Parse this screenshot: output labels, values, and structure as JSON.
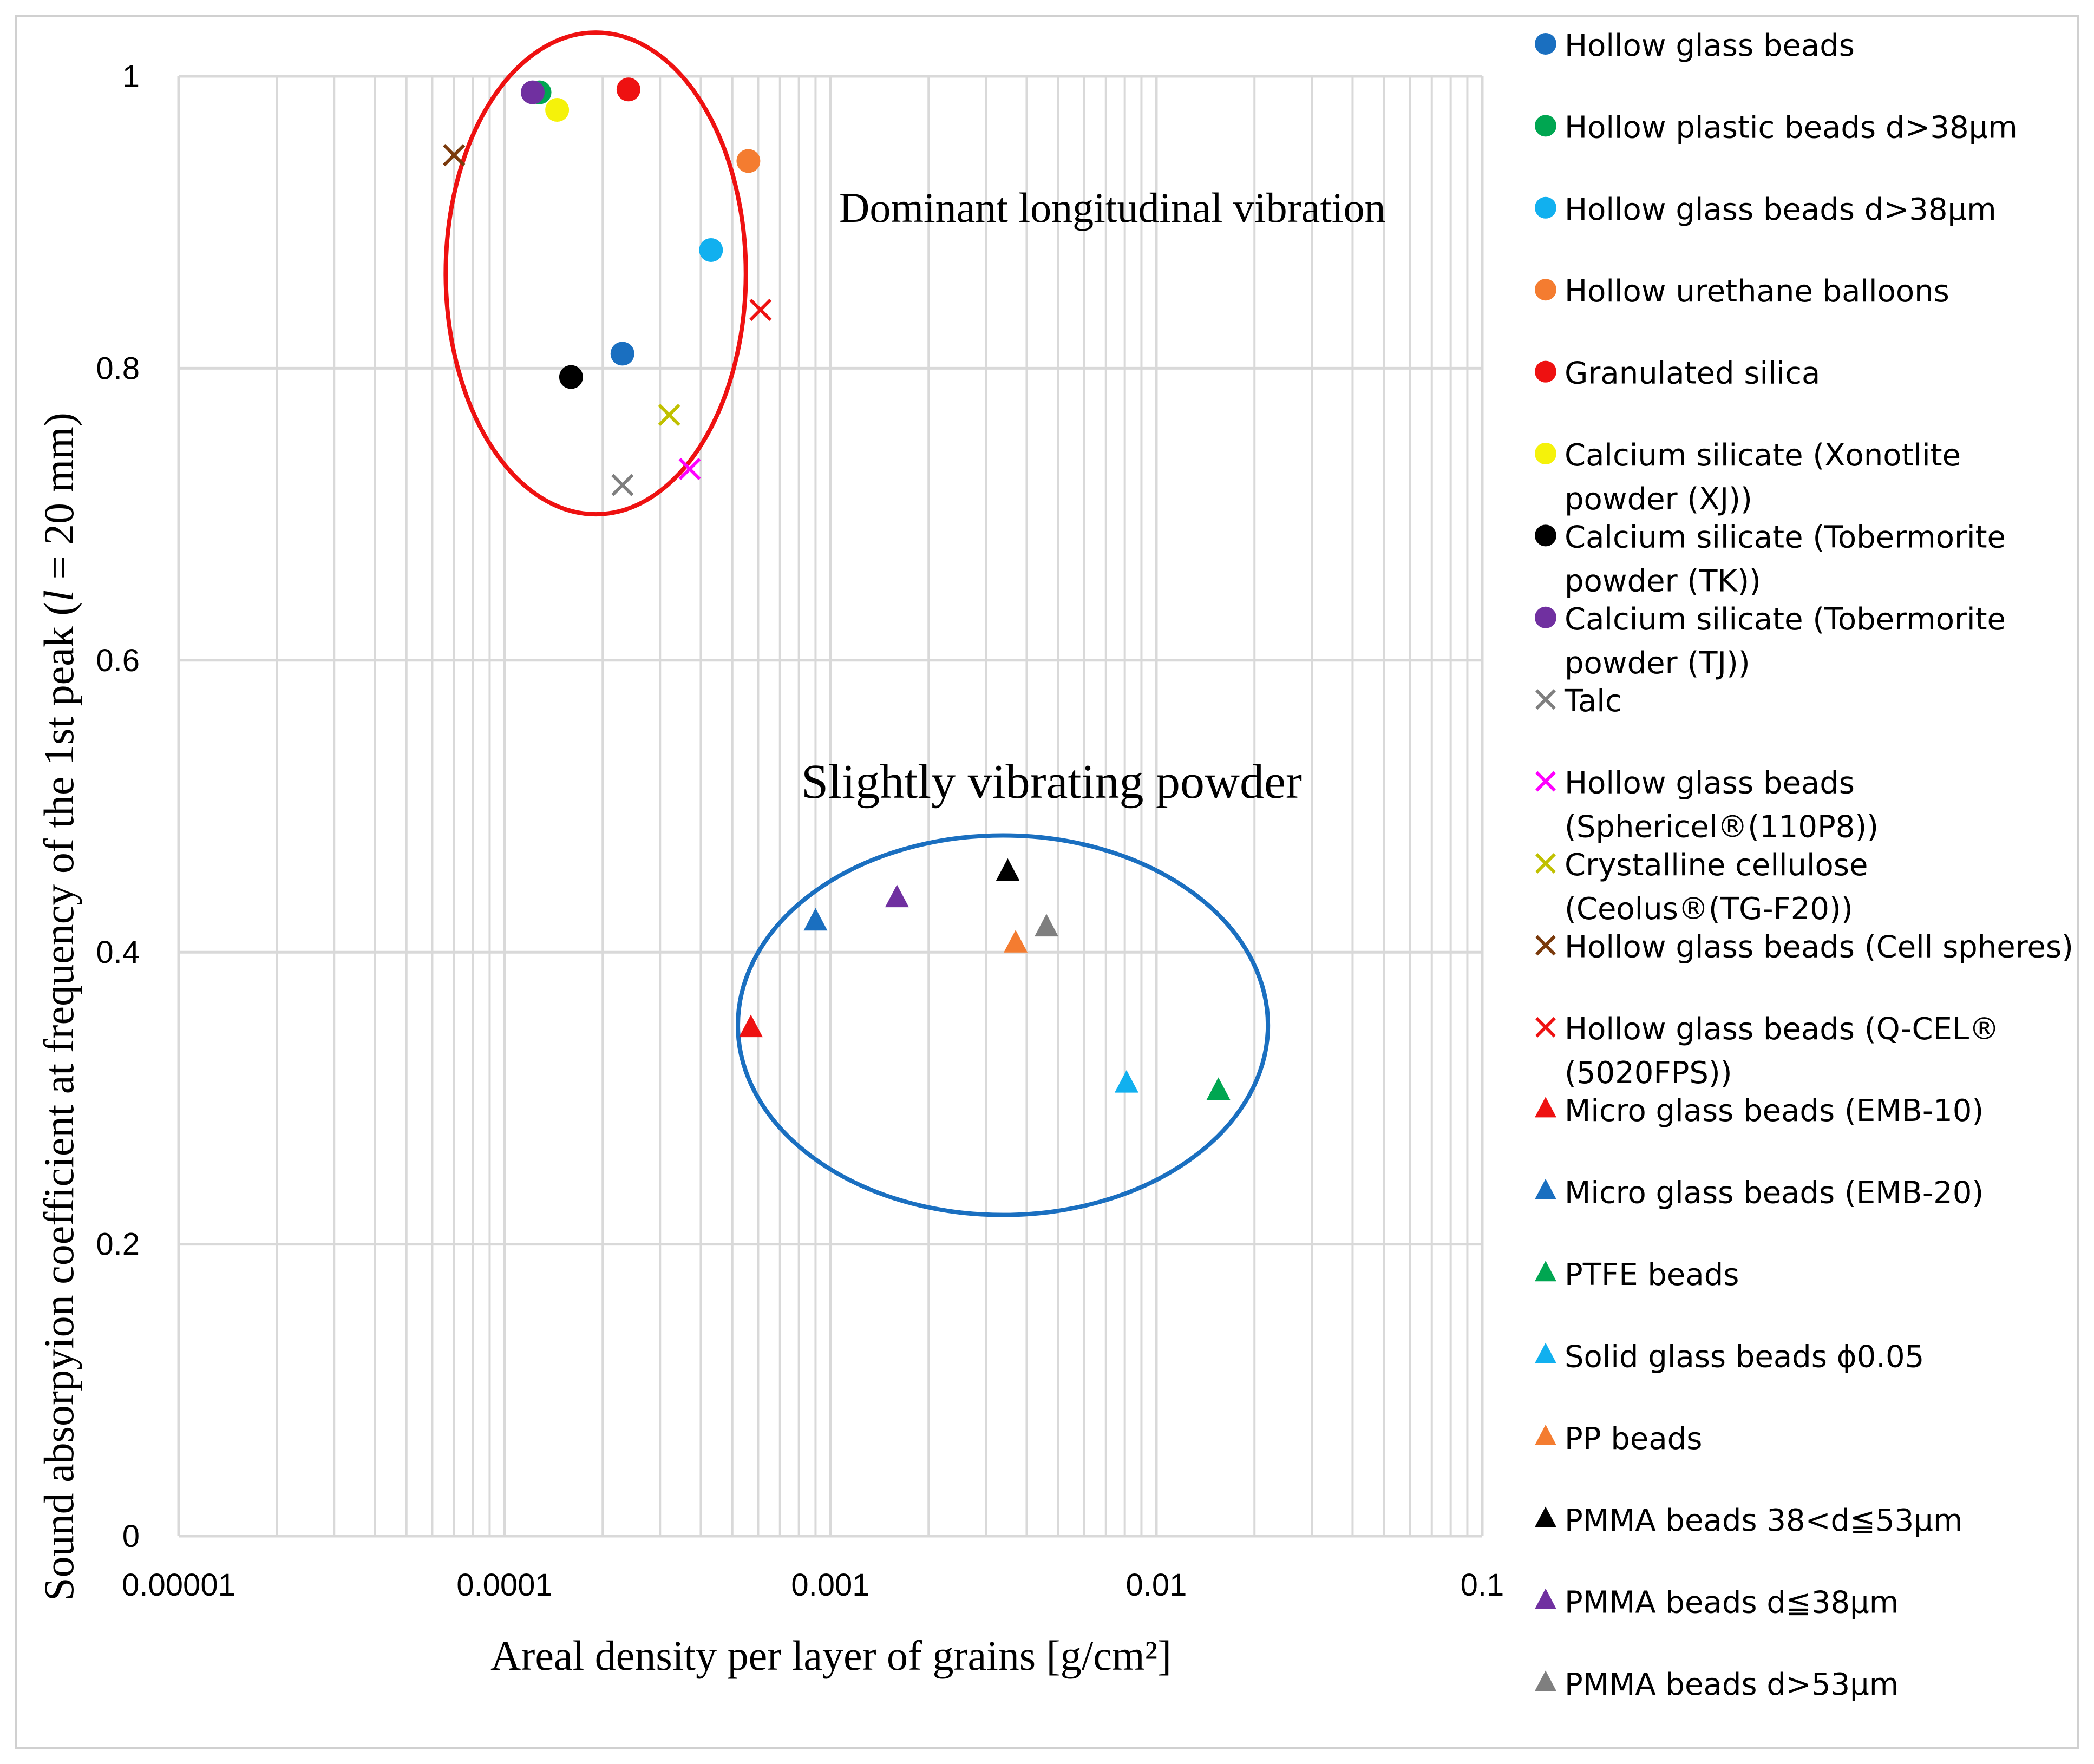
{
  "chart_data": {
    "type": "scatter",
    "title": "",
    "xlabel": "Areal density per layer of  grains [g/cm²]",
    "ylabel_parts": [
      "Sound absorpyion coefficient at frequency of the 1st peak (",
      "l",
      " = 20 mm)"
    ],
    "xscale": "log",
    "xlim": [
      1e-05,
      0.1
    ],
    "ylim": [
      0,
      1
    ],
    "grid": true,
    "x_ticks": [
      "0.00001",
      "0.0001",
      "0.001",
      "0.01",
      "0.1"
    ],
    "y_ticks": [
      "0",
      "0.2",
      "0.4",
      "0.6",
      "0.8",
      "1"
    ],
    "legend_position": "right",
    "annotations": [
      {
        "text": "Dominant longitudinal vibration",
        "shape": "ellipse",
        "color": "#ee1111",
        "center": [
          0.00019,
          0.86
        ],
        "x_range": [
          6.6e-05,
          0.00055
        ],
        "y_range": [
          0.7,
          1.03
        ]
      },
      {
        "text": "Slightly vibrating powder",
        "shape": "ellipse",
        "color": "#1a6fc0",
        "center": [
          0.0032,
          0.35
        ],
        "x_range": [
          0.00052,
          0.022
        ],
        "y_range": [
          0.22,
          0.48
        ]
      }
    ],
    "series": [
      {
        "name": "Hollow glass beads",
        "marker": "circle",
        "color": "#1a6fc0",
        "x": 0.00023,
        "y": 0.81
      },
      {
        "name": "Hollow plastic beads d>38μm",
        "marker": "circle",
        "color": "#00a651",
        "x": 0.000128,
        "y": 0.989
      },
      {
        "name": "Hollow glass beads d>38μm",
        "marker": "circle",
        "color": "#11b0ef",
        "x": 0.00043,
        "y": 0.881
      },
      {
        "name": "Hollow urethane balloons",
        "marker": "circle",
        "color": "#f47c30",
        "x": 0.00056,
        "y": 0.942
      },
      {
        "name": "Granulated silica",
        "marker": "circle",
        "color": "#ee1111",
        "x": 0.00024,
        "y": 0.991
      },
      {
        "name": "Calcium silicate (Xonotlite powder (XJ))",
        "marker": "circle",
        "color": "#f5f20a",
        "x": 0.000145,
        "y": 0.977
      },
      {
        "name": "Calcium silicate (Tobermorite powder (TK))",
        "marker": "circle",
        "color": "#000000",
        "x": 0.00016,
        "y": 0.794
      },
      {
        "name": "Calcium silicate (Tobermorite powder (TJ))",
        "marker": "circle",
        "color": "#7030a0",
        "x": 0.000122,
        "y": 0.989
      },
      {
        "name": "Talc",
        "marker": "x",
        "color": "#7f7f7f",
        "x": 0.00023,
        "y": 0.72
      },
      {
        "name": "Hollow glass beads (Sphericel®(110P8))",
        "marker": "x",
        "color": "#ff00ff",
        "x": 0.00037,
        "y": 0.731
      },
      {
        "name": "Crystalline cellulose (Ceolus®(TG-F20))",
        "marker": "x",
        "color": "#c0c000",
        "x": 0.00032,
        "y": 0.768
      },
      {
        "name": "Hollow glass beads (Cell spheres)",
        "marker": "x",
        "color": "#7a3a0c",
        "x": 7e-05,
        "y": 0.946
      },
      {
        "name": "Hollow glass beads (Q-CEL®(5020FPS))",
        "marker": "x",
        "color": "#ee1111",
        "x": 0.00061,
        "y": 0.84
      },
      {
        "name": "Micro glass beads (EMB-10)",
        "marker": "triangle",
        "color": "#ee1111",
        "x": 0.00057,
        "y": 0.348
      },
      {
        "name": "Micro glass beads (EMB-20)",
        "marker": "triangle",
        "color": "#1a6fc0",
        "x": 0.0009,
        "y": 0.421
      },
      {
        "name": "PTFE beads",
        "marker": "triangle",
        "color": "#00a651",
        "x": 0.0155,
        "y": 0.305
      },
      {
        "name": "Solid glass beads ϕ0.05",
        "marker": "triangle",
        "color": "#11b0ef",
        "x": 0.0081,
        "y": 0.31
      },
      {
        "name": "PP beads",
        "marker": "triangle",
        "color": "#f47c30",
        "x": 0.0037,
        "y": 0.406
      },
      {
        "name": "PMMA beads 38<d≦53μm",
        "marker": "triangle",
        "color": "#000000",
        "x": 0.0035,
        "y": 0.455
      },
      {
        "name": "PMMA beads d≦38μm",
        "marker": "triangle",
        "color": "#7030a0",
        "x": 0.0016,
        "y": 0.437
      },
      {
        "name": "PMMA beads d>53μm",
        "marker": "triangle",
        "color": "#7f7f7f",
        "x": 0.0046,
        "y": 0.417
      }
    ],
    "legend_labels": [
      [
        "Hollow glass beads"
      ],
      [
        "Hollow plastic beads d>38μm"
      ],
      [
        "Hollow glass beads d>38μm"
      ],
      [
        "Hollow urethane balloons"
      ],
      [
        "Granulated silica"
      ],
      [
        "Calcium silicate (Xonotlite",
        "powder (XJ))"
      ],
      [
        "Calcium silicate (Tobermorite",
        "powder (TK))"
      ],
      [
        "Calcium silicate (Tobermorite",
        "powder (TJ))"
      ],
      [
        "Talc"
      ],
      [
        "Hollow glass beads",
        "(Sphericel®(110P8))"
      ],
      [
        "Crystalline cellulose",
        "(Ceolus®(TG-F20))"
      ],
      [
        "Hollow glass beads (Cell spheres)"
      ],
      [
        "Hollow glass beads (Q-CEL®",
        "(5020FPS))"
      ],
      [
        "Micro glass beads (EMB-10)"
      ],
      [
        "Micro glass beads (EMB-20)"
      ],
      [
        "PTFE beads"
      ],
      [
        "Solid glass beads ϕ0.05"
      ],
      [
        "PP beads"
      ],
      [
        "PMMA beads 38<d≦53μm"
      ],
      [
        "PMMA beads d≦38μm"
      ],
      [
        "PMMA beads d>53μm"
      ]
    ]
  }
}
